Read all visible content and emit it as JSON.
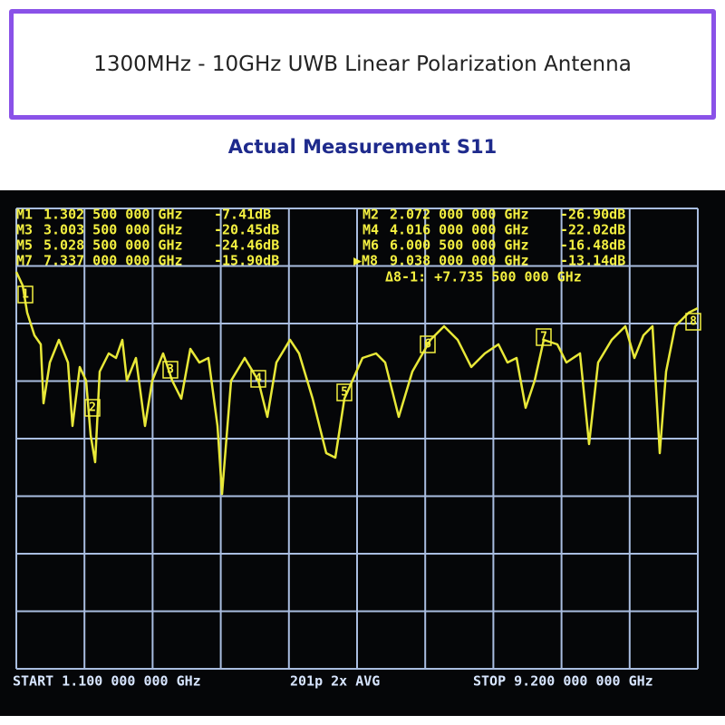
{
  "header": {
    "title": "1300MHz - 10GHz UWB Linear Polarization Antenna",
    "subtitle": "Actual Measurement S11"
  },
  "markers": [
    {
      "name": "M1",
      "freq": "1.302 500 000 GHz",
      "value": "-7.41dB",
      "tag": "1"
    },
    {
      "name": "M2",
      "freq": "2.072 000 000 GHz",
      "value": "-26.90dB",
      "tag": "2"
    },
    {
      "name": "M3",
      "freq": "3.003 500 000 GHz",
      "value": "-20.45dB",
      "tag": "3"
    },
    {
      "name": "M4",
      "freq": "4.016 000 000 GHz",
      "value": "-22.02dB",
      "tag": "4"
    },
    {
      "name": "M5",
      "freq": "5.028 500 000 GHz",
      "value": "-24.46dB",
      "tag": "5"
    },
    {
      "name": "M6",
      "freq": "6.000 500 000 GHz",
      "value": "-16.48dB",
      "tag": "6"
    },
    {
      "name": "M7",
      "freq": "7.337 000 000 GHz",
      "value": "-15.90dB",
      "tag": "7"
    },
    {
      "name": "▶M8",
      "freq": "9.038 000 000 GHz",
      "value": "-13.14dB",
      "tag": "8"
    }
  ],
  "delta": "Δ8-1: +7.735 500 000 GHz",
  "footer": {
    "start": "START 1.100 000 000 GHz",
    "points": "201p 2x AVG",
    "stop": "STOP 9.200 000 000 GHz"
  }
}
